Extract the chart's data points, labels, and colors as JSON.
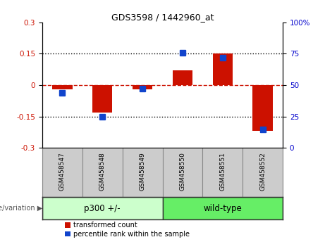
{
  "title": "GDS3598 / 1442960_at",
  "samples": [
    "GSM458547",
    "GSM458548",
    "GSM458549",
    "GSM458550",
    "GSM458551",
    "GSM458552"
  ],
  "red_values": [
    -0.02,
    -0.13,
    -0.02,
    0.07,
    0.15,
    -0.22
  ],
  "blue_values_pct": [
    44,
    25,
    47,
    76,
    72,
    15
  ],
  "group_boundary": 3,
  "ylim": [
    -0.3,
    0.3
  ],
  "yticks_left": [
    -0.3,
    -0.15,
    0,
    0.15,
    0.3
  ],
  "yticks_right": [
    0,
    25,
    50,
    75,
    100
  ],
  "red_color": "#cc1100",
  "blue_color": "#1144cc",
  "hline_color": "#cc1100",
  "dotted_color": "black",
  "bar_width": 0.5,
  "blue_marker_size": 6,
  "legend_red_label": "transformed count",
  "legend_blue_label": "percentile rank within the sample",
  "genotype_label": "genotype/variation",
  "group1_label": "p300 +/-",
  "group2_label": "wild-type",
  "group1_color": "#ccffcc",
  "group2_color": "#66ee66",
  "tick_label_color_left": "#cc1100",
  "tick_label_color_right": "#0000cc",
  "plot_bg": "#ffffff",
  "sample_bg": "#cccccc"
}
